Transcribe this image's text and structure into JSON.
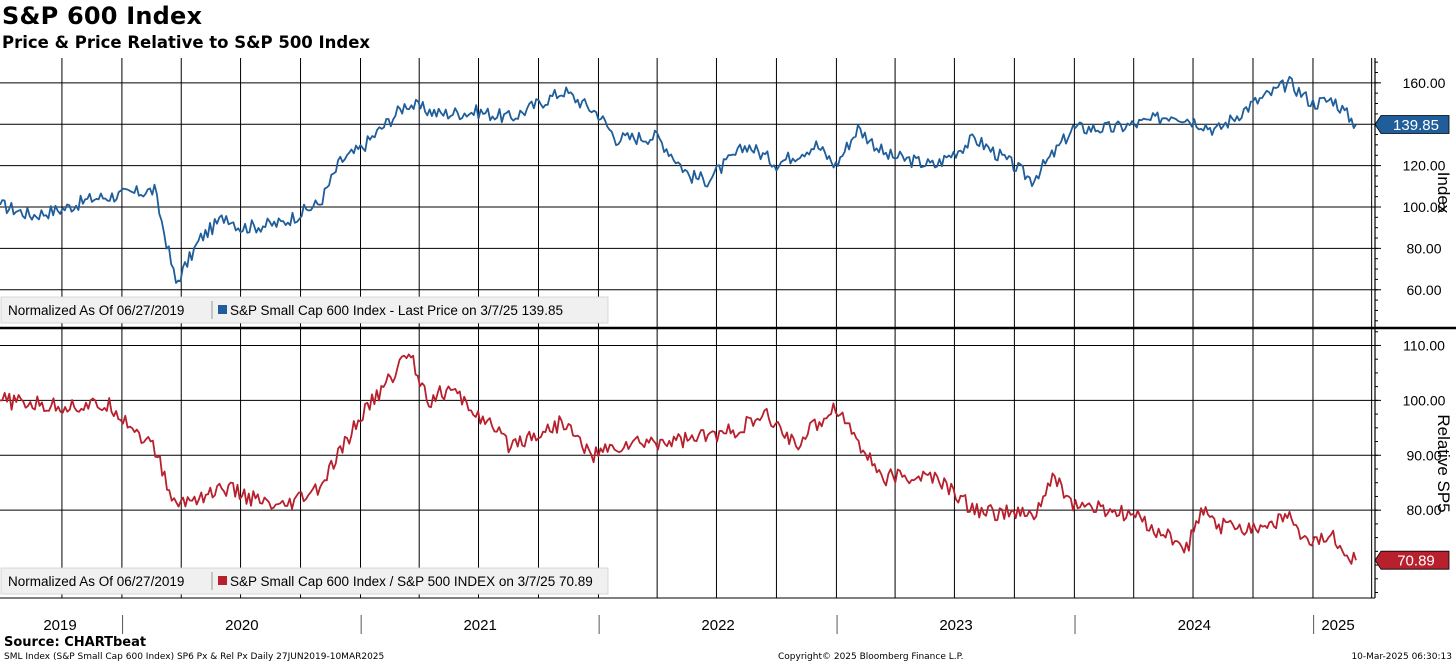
{
  "header": {
    "title": "S&P 600 Index",
    "subtitle": "Price & Price Relative to S&P 500 Index"
  },
  "footer": {
    "source": "Source: CHARTbeat",
    "description": "SML Index (S&P Small Cap 600 Index) SP6 Px & Rel Px   Daily 27JUN2019-10MAR2025",
    "copyright": "Copyright© 2025 Bloomberg Finance L.P.",
    "timestamp": "10-Mar-2025 06:30:13"
  },
  "chart_data": [
    {
      "type": "line",
      "ylabel": "Index",
      "ylim": [
        42,
        172
      ],
      "yticks": [
        "160.00",
        "140.00",
        "120.00",
        "100.00",
        "80.00",
        "60.00"
      ],
      "ytick_values": [
        160,
        140,
        120,
        100,
        80,
        60
      ],
      "grid": true,
      "legend": {
        "note": "Normalized As Of 06/27/2019",
        "entry": "S&P Small Cap 600 Index - Last Price on 3/7/25 139.85",
        "placement": "bottom-left"
      },
      "last_value_label": "139.85",
      "series": [
        {
          "name": "S&P Small Cap 600 Index - Last Price",
          "color": "#1f5e9a",
          "x": [
            "2019-06-27",
            "2019-08-15",
            "2019-10-01",
            "2019-11-15",
            "2020-01-02",
            "2020-02-19",
            "2020-03-23",
            "2020-04-30",
            "2020-06-08",
            "2020-06-30",
            "2020-08-31",
            "2020-10-30",
            "2020-11-30",
            "2020-12-31",
            "2021-01-29",
            "2021-03-12",
            "2021-04-30",
            "2021-06-30",
            "2021-08-19",
            "2021-09-30",
            "2021-11-08",
            "2021-12-31",
            "2022-01-27",
            "2022-03-31",
            "2022-05-20",
            "2022-06-16",
            "2022-08-16",
            "2022-09-30",
            "2022-11-30",
            "2022-12-30",
            "2023-02-02",
            "2023-03-17",
            "2023-05-31",
            "2023-07-31",
            "2023-09-29",
            "2023-10-27",
            "2023-11-30",
            "2023-12-29",
            "2024-02-29",
            "2024-04-19",
            "2024-05-31",
            "2024-07-16",
            "2024-08-05",
            "2024-09-30",
            "2024-11-25",
            "2024-12-31",
            "2025-01-31",
            "2025-03-07"
          ],
          "values": [
            101,
            96,
            99,
            104,
            106,
            108,
            63,
            85,
            96,
            90,
            92,
            102,
            122,
            128,
            137,
            150,
            145,
            146,
            143,
            150,
            156,
            145,
            133,
            134,
            115,
            113,
            130,
            121,
            130,
            120,
            138,
            125,
            120,
            133,
            120,
            113,
            126,
            138,
            138,
            141,
            145,
            140,
            137,
            150,
            160,
            150,
            152,
            139.85
          ]
        }
      ]
    },
    {
      "type": "line",
      "ylabel": "Relative SP5",
      "ylim": [
        64,
        113
      ],
      "yticks": [
        "110.00",
        "100.00",
        "90.00",
        "80.00"
      ],
      "ytick_values": [
        110,
        100,
        90,
        80
      ],
      "grid": true,
      "legend": {
        "note": "Normalized As Of 06/27/2019",
        "entry": "S&P Small Cap 600 Index / S&P 500 INDEX on 3/7/25 70.89",
        "placement": "bottom-left"
      },
      "last_value_label": "70.89",
      "series": [
        {
          "name": "S&P Small Cap 600 Index / S&P 500 INDEX",
          "color": "#b8202e",
          "x": [
            "2019-06-27",
            "2019-09-10",
            "2019-12-15",
            "2020-02-20",
            "2020-03-20",
            "2020-06-08",
            "2020-08-30",
            "2020-10-30",
            "2020-12-31",
            "2021-02-15",
            "2021-03-15",
            "2021-04-15",
            "2021-05-15",
            "2021-06-15",
            "2021-08-15",
            "2021-09-30",
            "2021-11-08",
            "2021-12-20",
            "2022-02-15",
            "2022-05-20",
            "2022-07-15",
            "2022-09-15",
            "2022-10-30",
            "2022-12-30",
            "2023-03-10",
            "2023-05-31",
            "2023-07-31",
            "2023-10-30",
            "2023-12-01",
            "2023-12-29",
            "2024-03-30",
            "2024-06-20",
            "2024-07-16",
            "2024-08-05",
            "2024-10-15",
            "2024-11-25",
            "2024-12-15",
            "2025-01-31",
            "2025-03-07"
          ],
          "values": [
            100,
            99,
            99,
            91,
            81,
            84,
            80,
            84,
            97,
            104,
            109,
            100,
            102,
            99,
            92,
            94,
            96,
            90,
            92,
            93,
            94,
            97,
            92,
            99,
            86,
            86,
            80,
            79,
            86,
            81,
            79,
            73,
            80,
            77,
            77,
            79,
            74,
            75,
            70.89
          ]
        }
      ]
    }
  ],
  "xaxis": {
    "year_labels": [
      "2019",
      "2020",
      "2021",
      "2022",
      "2023",
      "2024",
      "2025"
    ]
  },
  "colors": {
    "price": "#1f5e9a",
    "relative": "#b8202e",
    "grid": "#000000",
    "legend_bg": "#f0f0f0"
  }
}
